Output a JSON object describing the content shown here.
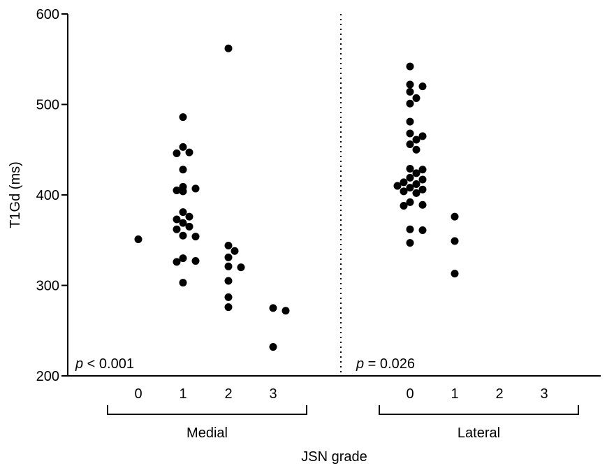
{
  "chart_data": {
    "type": "scatter",
    "title": "",
    "ylabel": "T1Gd (ms)",
    "xlabel": "JSN grade",
    "ylim": [
      200,
      600
    ],
    "yticks": [
      "200",
      "300",
      "400",
      "500",
      "600"
    ],
    "grid": false,
    "separator": "dotted",
    "groups": [
      {
        "label": "Medial",
        "categories": [
          "0",
          "1",
          "2",
          "3"
        ],
        "annotation_p": "p",
        "annotation_rest": " < 0.001",
        "points": [
          {
            "x": "0",
            "y": 351
          },
          {
            "x": "1",
            "y": 486
          },
          {
            "x": "1",
            "y": 453
          },
          {
            "x": "1",
            "y": 447
          },
          {
            "x": "1",
            "y": 446
          },
          {
            "x": "1",
            "y": 428
          },
          {
            "x": "1",
            "y": 409
          },
          {
            "x": "1",
            "y": 407
          },
          {
            "x": "1",
            "y": 405
          },
          {
            "x": "1",
            "y": 404
          },
          {
            "x": "1",
            "y": 381
          },
          {
            "x": "1",
            "y": 376
          },
          {
            "x": "1",
            "y": 373
          },
          {
            "x": "1",
            "y": 369
          },
          {
            "x": "1",
            "y": 365
          },
          {
            "x": "1",
            "y": 362
          },
          {
            "x": "1",
            "y": 355
          },
          {
            "x": "1",
            "y": 354
          },
          {
            "x": "1",
            "y": 330
          },
          {
            "x": "1",
            "y": 327
          },
          {
            "x": "1",
            "y": 326
          },
          {
            "x": "1",
            "y": 303
          },
          {
            "x": "2",
            "y": 562
          },
          {
            "x": "2",
            "y": 344
          },
          {
            "x": "2",
            "y": 338
          },
          {
            "x": "2",
            "y": 331
          },
          {
            "x": "2",
            "y": 321
          },
          {
            "x": "2",
            "y": 320
          },
          {
            "x": "2",
            "y": 305
          },
          {
            "x": "2",
            "y": 287
          },
          {
            "x": "2",
            "y": 276
          },
          {
            "x": "3",
            "y": 275
          },
          {
            "x": "3",
            "y": 272
          },
          {
            "x": "3",
            "y": 232
          }
        ]
      },
      {
        "label": "Lateral",
        "categories": [
          "0",
          "1",
          "2",
          "3"
        ],
        "annotation_p": "p",
        "annotation_rest": " = 0.026",
        "points": [
          {
            "x": "0",
            "y": 542
          },
          {
            "x": "0",
            "y": 522
          },
          {
            "x": "0",
            "y": 520
          },
          {
            "x": "0",
            "y": 514
          },
          {
            "x": "0",
            "y": 507
          },
          {
            "x": "0",
            "y": 501
          },
          {
            "x": "0",
            "y": 481
          },
          {
            "x": "0",
            "y": 468
          },
          {
            "x": "0",
            "y": 465
          },
          {
            "x": "0",
            "y": 461
          },
          {
            "x": "0",
            "y": 456
          },
          {
            "x": "0",
            "y": 450
          },
          {
            "x": "0",
            "y": 429
          },
          {
            "x": "0",
            "y": 428
          },
          {
            "x": "0",
            "y": 424
          },
          {
            "x": "0",
            "y": 419
          },
          {
            "x": "0",
            "y": 417
          },
          {
            "x": "0",
            "y": 414
          },
          {
            "x": "0",
            "y": 412
          },
          {
            "x": "0",
            "y": 410
          },
          {
            "x": "0",
            "y": 408
          },
          {
            "x": "0",
            "y": 406
          },
          {
            "x": "0",
            "y": 404
          },
          {
            "x": "0",
            "y": 402
          },
          {
            "x": "0",
            "y": 392
          },
          {
            "x": "0",
            "y": 389
          },
          {
            "x": "0",
            "y": 388
          },
          {
            "x": "0",
            "y": 362
          },
          {
            "x": "0",
            "y": 361
          },
          {
            "x": "0",
            "y": 347
          },
          {
            "x": "1",
            "y": 376
          },
          {
            "x": "1",
            "y": 349
          },
          {
            "x": "1",
            "y": 313
          }
        ]
      }
    ]
  }
}
